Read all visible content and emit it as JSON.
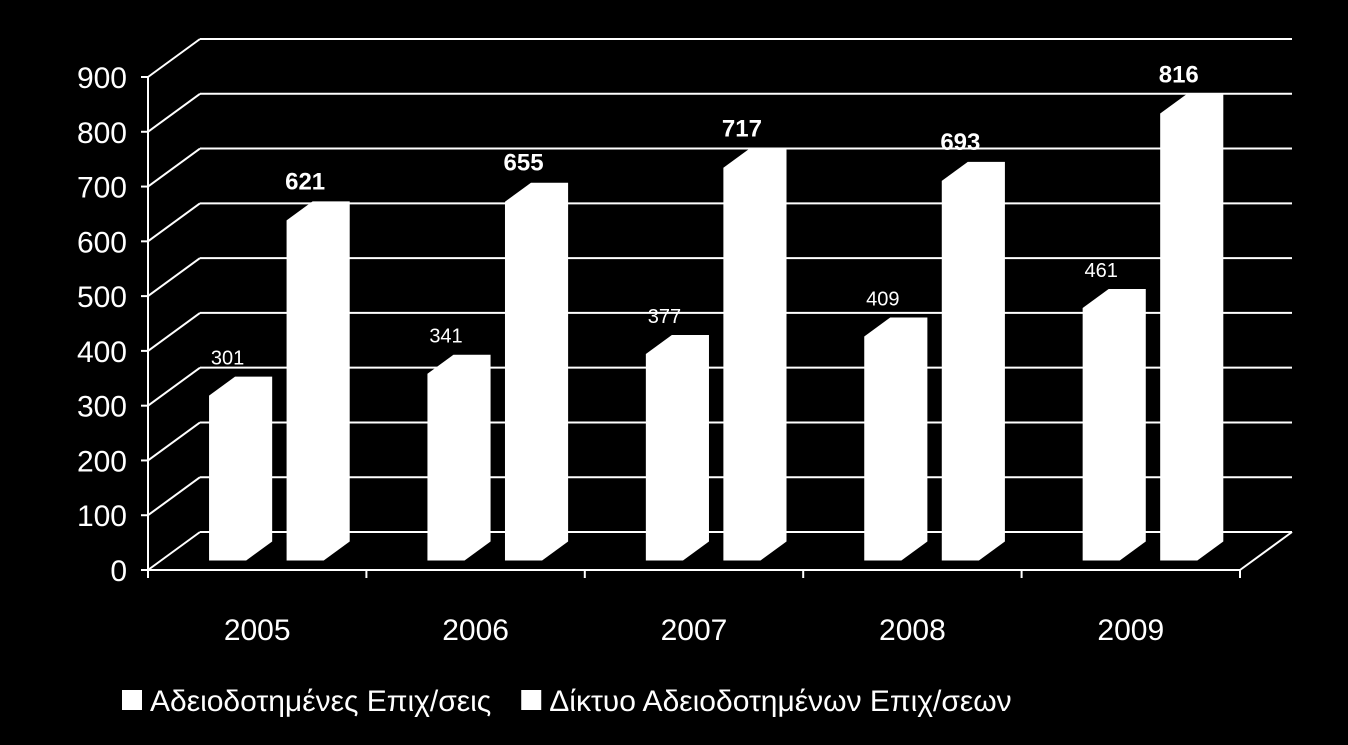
{
  "chart_data": {
    "type": "bar3d",
    "categories": [
      "2005",
      "2006",
      "2007",
      "2008",
      "2009"
    ],
    "series": [
      {
        "name": "Αδειοδοτημένες Επιχ/σεις",
        "color": "#ffffff",
        "values": [
          301,
          341,
          377,
          409,
          461
        ]
      },
      {
        "name": "Δίκτυο Αδειοδοτημένων Επιχ/σεων",
        "color": "#ffffff",
        "values": [
          621,
          655,
          717,
          693,
          816
        ]
      }
    ],
    "ylim": [
      0,
      900
    ],
    "yticks": [
      0,
      100,
      200,
      300,
      400,
      500,
      600,
      700,
      800,
      900
    ],
    "grid": true,
    "legend": "bottom"
  }
}
